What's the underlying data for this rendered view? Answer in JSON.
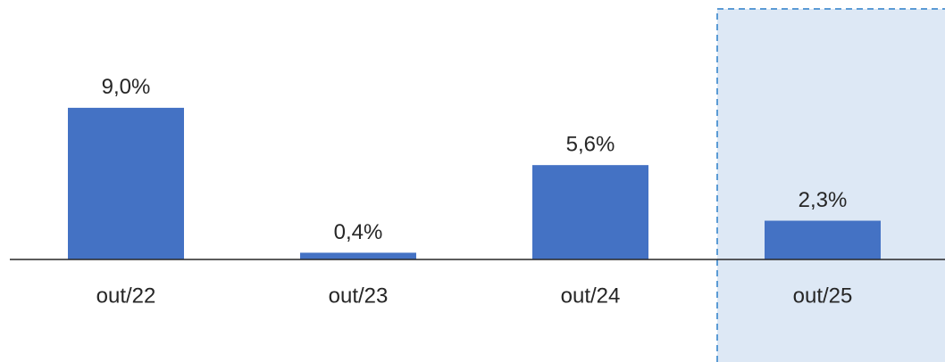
{
  "chart_data": {
    "type": "bar",
    "categories": [
      "out/22",
      "out/23",
      "out/24",
      "out/25"
    ],
    "values": [
      9.0,
      0.4,
      5.6,
      2.3
    ],
    "value_labels": [
      "9,0%",
      "0,4%",
      "5,6%",
      "2,3%"
    ],
    "color": "#4472c4",
    "highlight": 3
  }
}
